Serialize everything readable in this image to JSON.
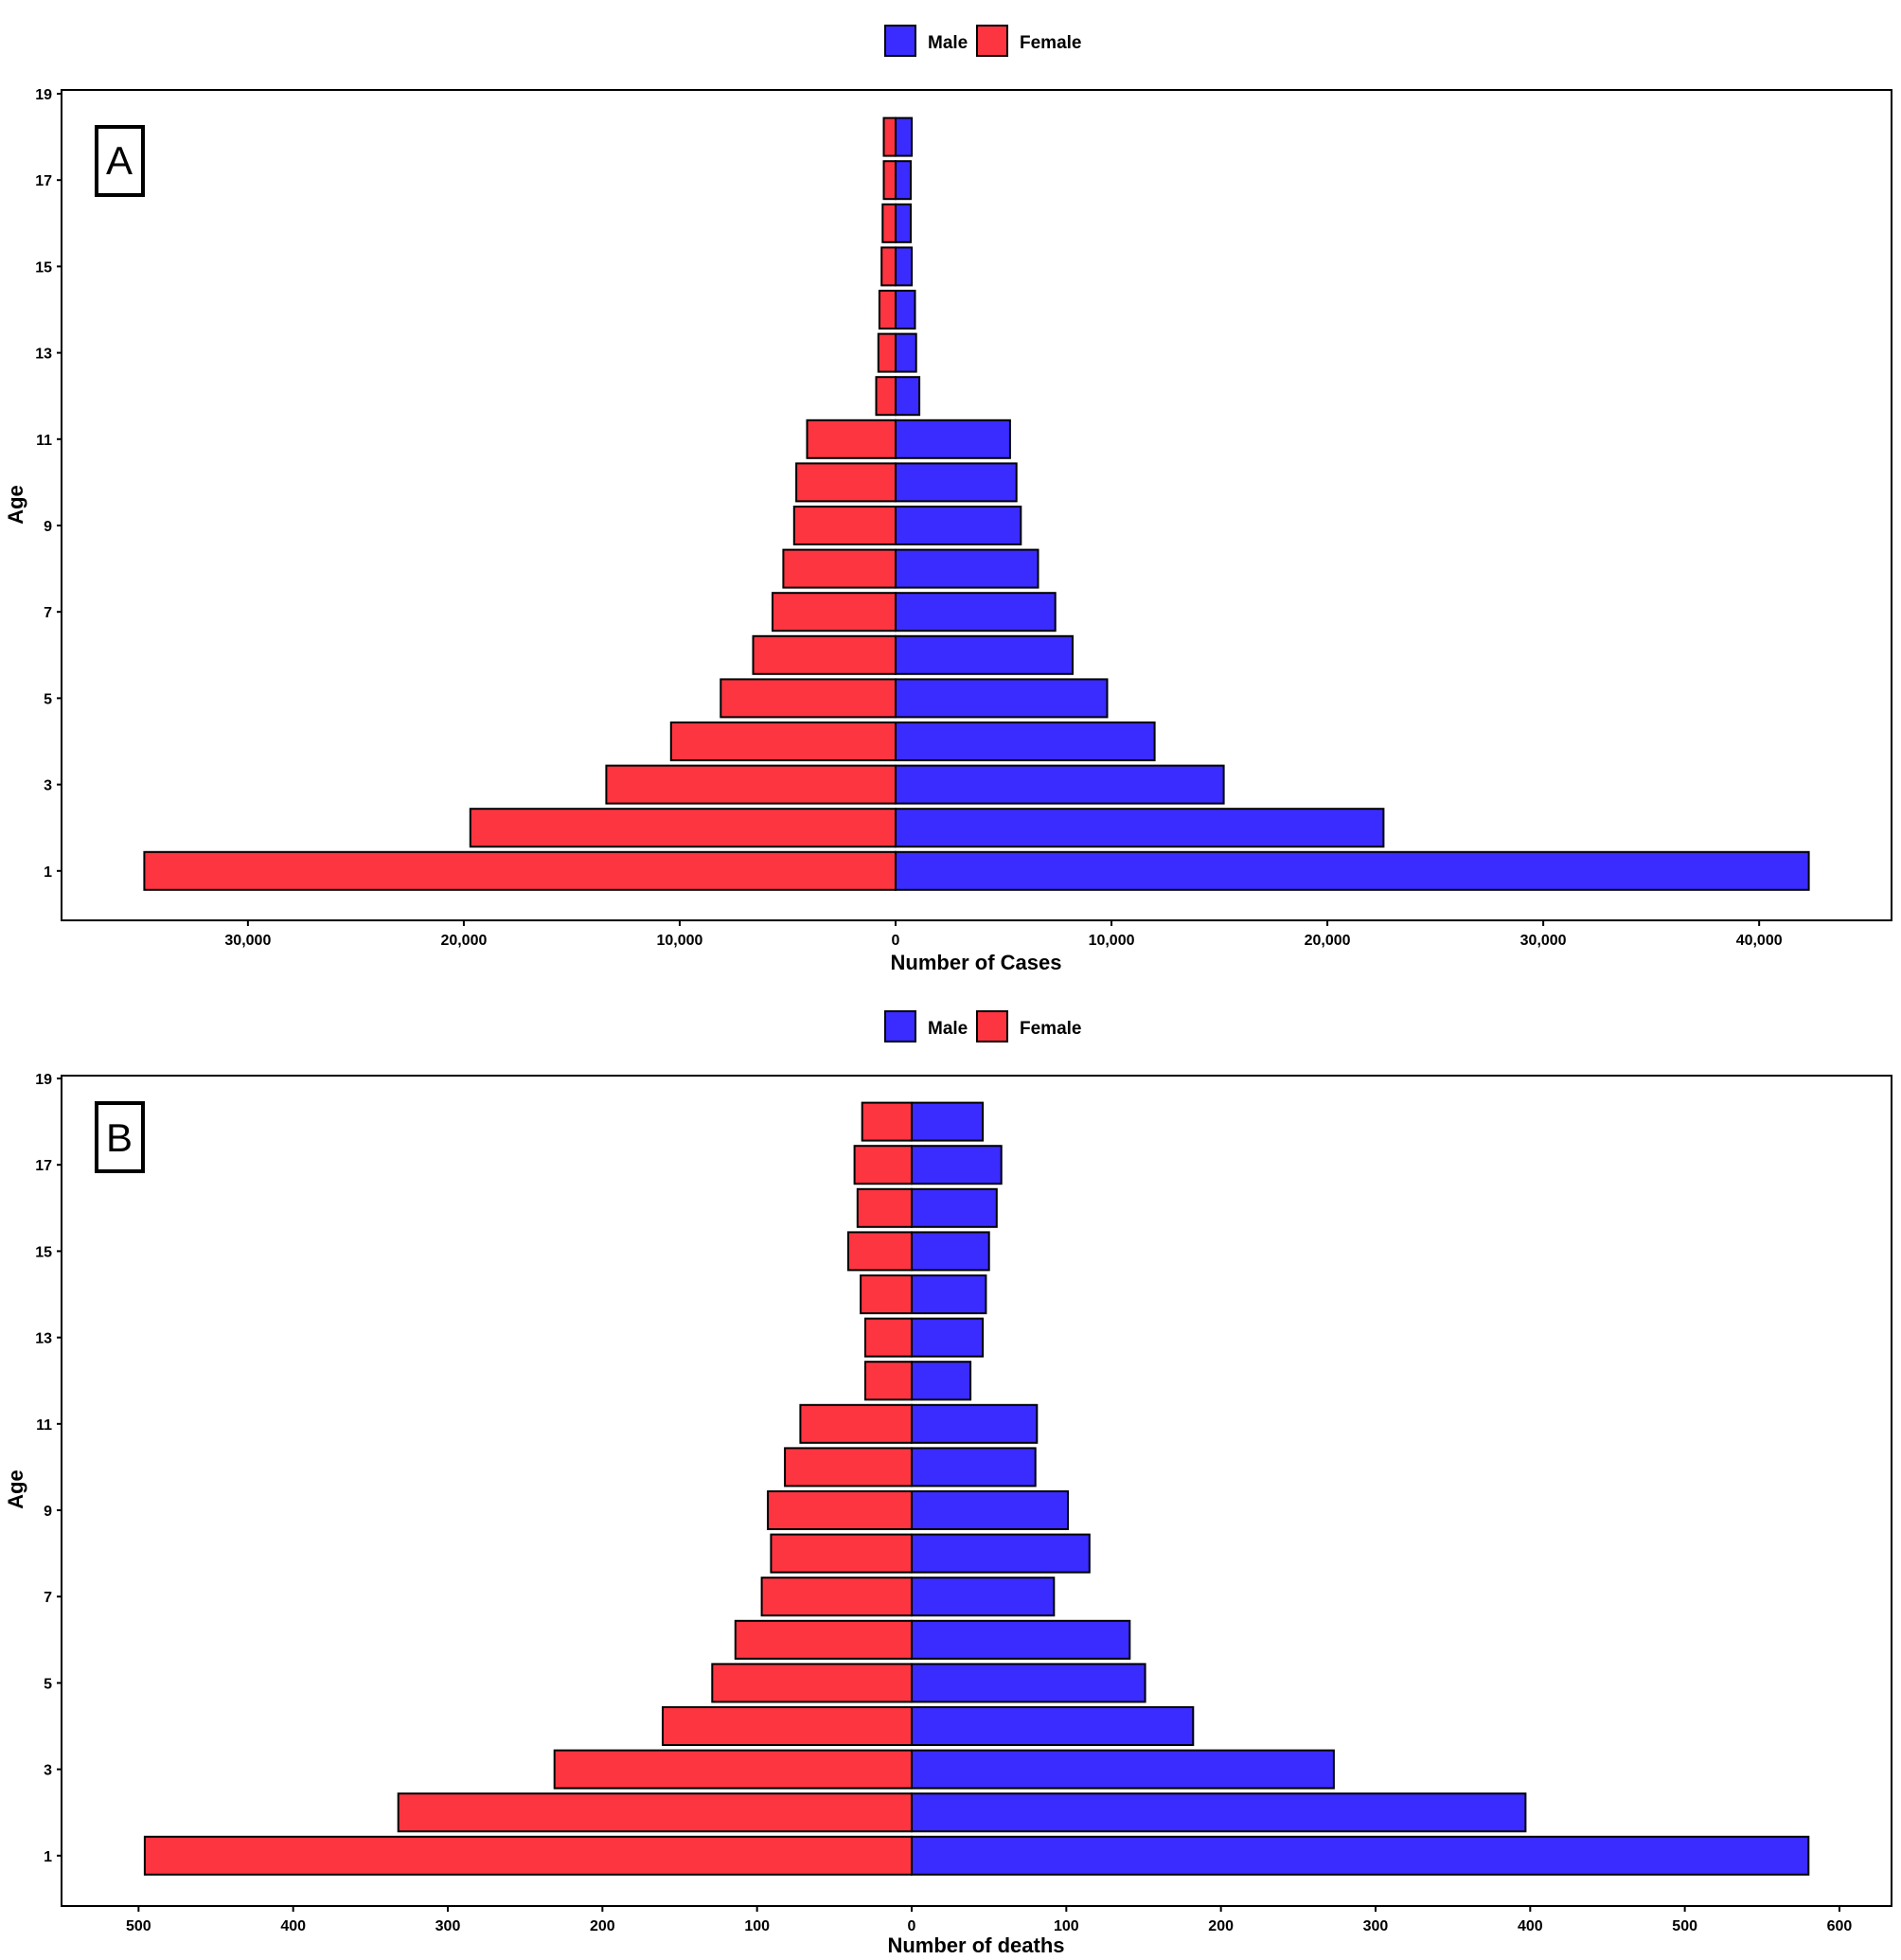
{
  "legend": {
    "male_label": "Male",
    "female_label": "Female"
  },
  "colors": {
    "male": "#3a2bff",
    "female": "#fc3540",
    "bar_stroke": "#000000",
    "frame": "#000000"
  },
  "chart_data": [
    {
      "type": "bar",
      "orientation": "horizontal",
      "panel_label": "A",
      "xlabel": "Number of Cases",
      "ylabel": "Age",
      "categories": [
        1,
        2,
        3,
        4,
        5,
        6,
        7,
        8,
        9,
        10,
        11,
        12,
        13,
        14,
        15,
        16,
        17,
        18
      ],
      "series": [
        {
          "name": "Male",
          "values": [
            42300,
            22600,
            15200,
            12000,
            9800,
            8200,
            7400,
            6600,
            5800,
            5600,
            5300,
            1100,
            950,
            900,
            750,
            700,
            700,
            750
          ]
        },
        {
          "name": "Female",
          "values": [
            34800,
            19700,
            13400,
            10400,
            8100,
            6600,
            5700,
            5200,
            4700,
            4600,
            4100,
            900,
            800,
            750,
            650,
            600,
            550,
            550
          ]
        }
      ],
      "x_tick_labels": [
        "30,000",
        "20,000",
        "10,000",
        "0",
        "10,000",
        "20,000",
        "30,000",
        "40,000"
      ],
      "y_tick_labels": [
        "1",
        "3",
        "5",
        "7",
        "9",
        "11",
        "13",
        "15",
        "17",
        "19"
      ],
      "legend_position": "top-center",
      "grid": false
    },
    {
      "type": "bar",
      "orientation": "horizontal",
      "panel_label": "B",
      "xlabel": "Number of deaths",
      "ylabel": "Age",
      "categories": [
        1,
        2,
        3,
        4,
        5,
        6,
        7,
        8,
        9,
        10,
        11,
        12,
        13,
        14,
        15,
        16,
        17,
        18
      ],
      "series": [
        {
          "name": "Male",
          "values": [
            580,
            397,
            273,
            182,
            151,
            141,
            92,
            115,
            101,
            80,
            81,
            38,
            46,
            48,
            50,
            55,
            58,
            46
          ]
        },
        {
          "name": "Female",
          "values": [
            496,
            332,
            231,
            161,
            129,
            114,
            97,
            91,
            93,
            82,
            72,
            30,
            30,
            33,
            41,
            35,
            37,
            32
          ]
        }
      ],
      "x_tick_labels": [
        "500",
        "400",
        "300",
        "200",
        "100",
        "0",
        "100",
        "200",
        "300",
        "400",
        "500",
        "600"
      ],
      "y_tick_labels": [
        "1",
        "3",
        "5",
        "7",
        "9",
        "11",
        "13",
        "15",
        "17",
        "19"
      ],
      "legend_position": "top-center",
      "grid": false
    }
  ]
}
